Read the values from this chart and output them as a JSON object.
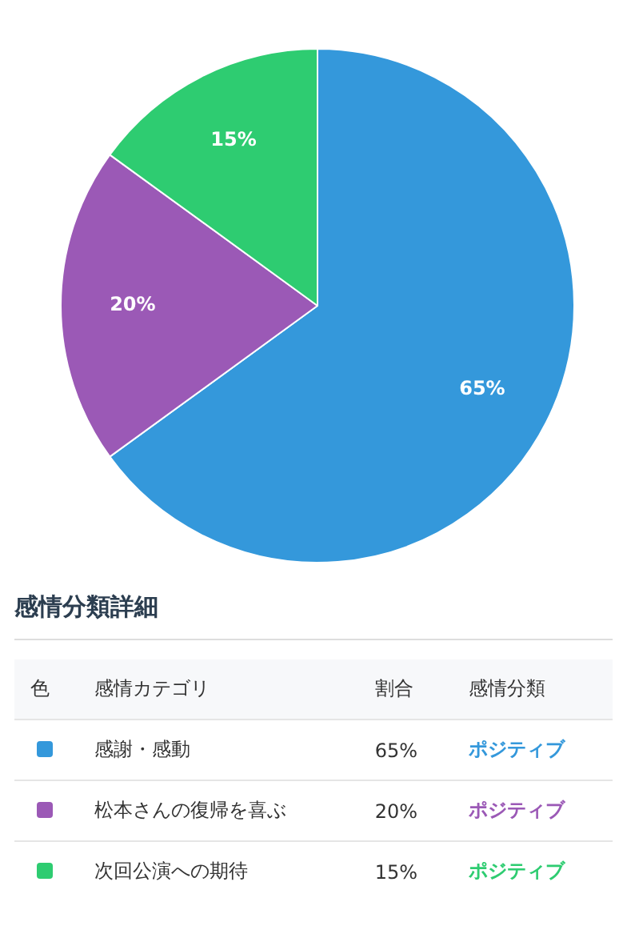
{
  "chart_data": {
    "type": "pie",
    "categories": [
      "感謝・感動",
      "松本さんの復帰を喜ぶ",
      "次回公演への期待"
    ],
    "values": [
      65,
      20,
      15
    ],
    "colors": [
      "#3498db",
      "#9b59b6",
      "#2ecc71"
    ],
    "value_labels": [
      "65%",
      "20%",
      "15%"
    ],
    "legend": "bottom",
    "annotations": [
      "感情分類詳細",
      "色",
      "感情カテゴリ",
      "割合",
      "感情分類",
      "ポジティブ",
      "ポジティブ",
      "ポジティブ"
    ]
  }
}
